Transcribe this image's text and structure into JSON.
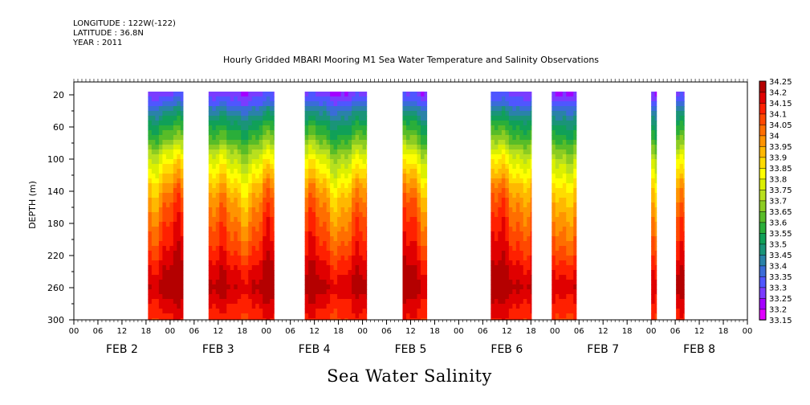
{
  "meta": {
    "longitude": "LONGITUDE : 122W(-122)",
    "latitude": "LATITUDE : 36.8N",
    "year": "YEAR : 2011"
  },
  "chart_data": {
    "type": "heatmap",
    "title": "Hourly Gridded MBARI Mooring M1 Sea Water Temperature and Salinity Observations",
    "xlabel": "Sea Water Salinity",
    "ylabel": "DEPTH (m)",
    "x_unit": "hours since 2011-02-02 00:00",
    "xlim": [
      0,
      168
    ],
    "ylim": [
      300,
      0
    ],
    "y_ticks": [
      20,
      60,
      100,
      140,
      180,
      220,
      260,
      300
    ],
    "x_hour_tick_labels": [
      "00",
      "06",
      "12",
      "18"
    ],
    "day_labels": [
      "FEB  2",
      "FEB  3",
      "FEB  4",
      "FEB  5",
      "FEB  6",
      "FEB  7",
      "FEB  8"
    ],
    "colorbar_levels": [
      33.15,
      33.2,
      33.25,
      33.3,
      33.35,
      33.4,
      33.45,
      33.5,
      33.55,
      33.6,
      33.65,
      33.7,
      33.75,
      33.8,
      33.85,
      33.9,
      33.95,
      34.0,
      34.05,
      34.1,
      34.15,
      34.2,
      34.25
    ],
    "colorbar_colors": [
      "#e000ff",
      "#a400ff",
      "#7a3cff",
      "#4f56ff",
      "#3a6cd8",
      "#2a82a8",
      "#1a9478",
      "#10a058",
      "#2aae3a",
      "#58bc28",
      "#8ccc22",
      "#b8e01e",
      "#dcf000",
      "#ffff00",
      "#ffdc00",
      "#ffb800",
      "#ff9400",
      "#ff6e00",
      "#ff4800",
      "#ff2000",
      "#e00000",
      "#b40000"
    ],
    "data_segments_hours": [
      [
        18.5,
        27.2
      ],
      [
        33.6,
        49.9
      ],
      [
        57.6,
        73.0
      ],
      [
        82.0,
        88.0
      ],
      [
        104.0,
        114.1
      ],
      [
        119.2,
        125.3
      ],
      [
        144.0,
        145.3
      ],
      [
        150.2,
        152.2
      ]
    ],
    "depth_profile": [
      {
        "depth": 16,
        "salinity": 33.28
      },
      {
        "depth": 30,
        "salinity": 33.36
      },
      {
        "depth": 45,
        "salinity": 33.46
      },
      {
        "depth": 60,
        "salinity": 33.55
      },
      {
        "depth": 75,
        "salinity": 33.62
      },
      {
        "depth": 90,
        "salinity": 33.72
      },
      {
        "depth": 105,
        "salinity": 33.8
      },
      {
        "depth": 120,
        "salinity": 33.86
      },
      {
        "depth": 135,
        "salinity": 33.93
      },
      {
        "depth": 150,
        "salinity": 33.98
      },
      {
        "depth": 170,
        "salinity": 34.03
      },
      {
        "depth": 195,
        "salinity": 34.08
      },
      {
        "depth": 215,
        "salinity": 34.12
      },
      {
        "depth": 235,
        "salinity": 34.17
      },
      {
        "depth": 260,
        "salinity": 34.22
      },
      {
        "depth": 280,
        "salinity": 34.16
      },
      {
        "depth": 300,
        "salinity": 34.12
      }
    ]
  }
}
